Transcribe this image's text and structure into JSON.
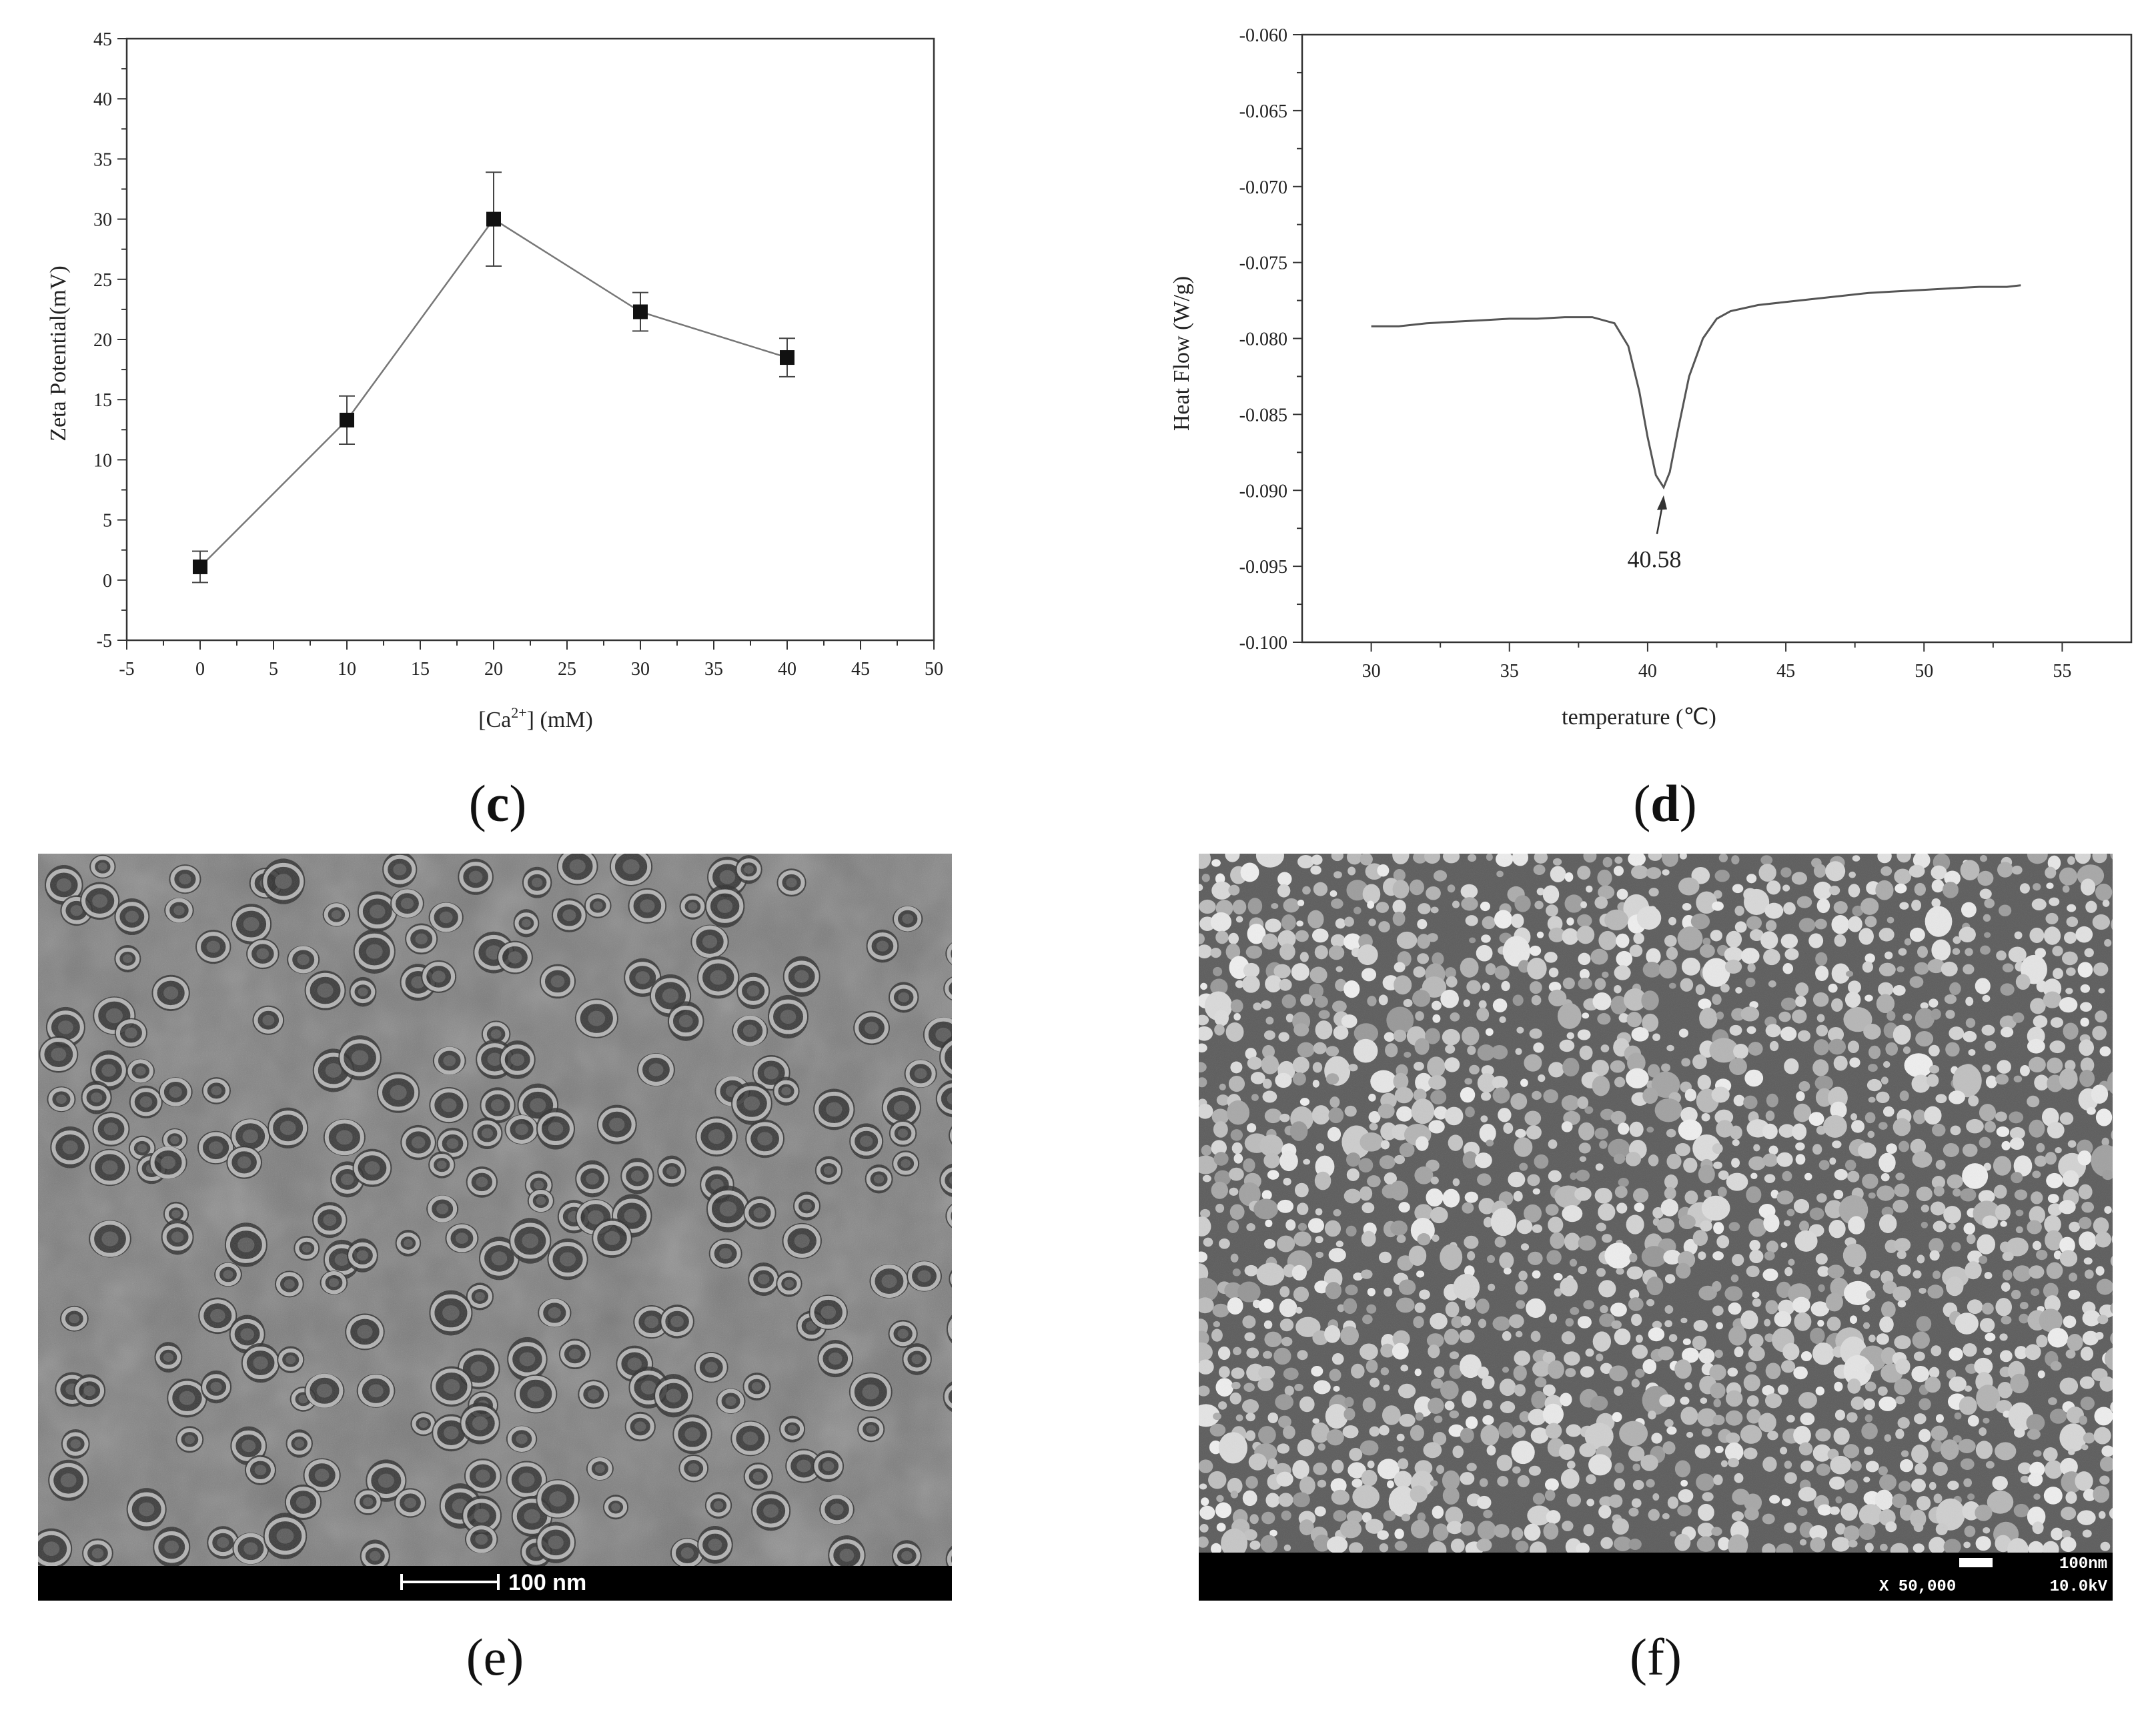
{
  "panels": {
    "c": {
      "open": "(",
      "letter": "c",
      "close": ")"
    },
    "d": {
      "open": "(",
      "letter": "d",
      "close": ")"
    },
    "e": {
      "label": "(e)"
    },
    "f": {
      "label": "(f)"
    }
  },
  "chart_data": [
    {
      "id": "c",
      "type": "line",
      "xlabel": "[Ca2+] (mM)",
      "xlabel_parts": {
        "pre": "[Ca",
        "sup": "2+",
        "post": "] (mM)"
      },
      "ylabel": "Zeta Potential(mV)",
      "xlim": [
        -5,
        50
      ],
      "ylim": [
        -5,
        45
      ],
      "xticks": [
        "-5",
        "0",
        "5",
        "10",
        "15",
        "20",
        "25",
        "30",
        "35",
        "40",
        "45",
        "50"
      ],
      "yticks": [
        "-5",
        "0",
        "5",
        "10",
        "15",
        "20",
        "25",
        "30",
        "35",
        "40",
        "45"
      ],
      "grid": false,
      "marker": "square",
      "series": [
        {
          "x": [
            0,
            10,
            20,
            30,
            40
          ],
          "y": [
            1.1,
            13.3,
            30.0,
            22.3,
            18.5
          ],
          "error": [
            1.3,
            2.0,
            3.9,
            1.6,
            1.6
          ]
        }
      ]
    },
    {
      "id": "d",
      "type": "line",
      "xlabel": "temperature (℃)",
      "ylabel": "Heat Flow (W/g)",
      "xlim": [
        27.5,
        57.5
      ],
      "ylim": [
        -0.1,
        -0.06
      ],
      "xticks": [
        "30",
        "35",
        "40",
        "45",
        "50",
        "55"
      ],
      "yticks": [
        "-0.060",
        "-0.065",
        "-0.070",
        "-0.075",
        "-0.080",
        "-0.085",
        "-0.090",
        "-0.095",
        "-0.100"
      ],
      "grid": false,
      "annotation": {
        "text": "40.58",
        "x": 40.58,
        "y": -0.0898
      },
      "series": [
        {
          "x": [
            30,
            31,
            32,
            33,
            34,
            35,
            36,
            37,
            38,
            38.8,
            39.3,
            39.7,
            40.0,
            40.3,
            40.58,
            40.8,
            41.1,
            41.5,
            42.0,
            42.5,
            43,
            44,
            45,
            46,
            47,
            48,
            49,
            50,
            51,
            52,
            53,
            53.5
          ],
          "y": [
            -0.0792,
            -0.0792,
            -0.079,
            -0.0789,
            -0.0788,
            -0.0787,
            -0.0787,
            -0.0786,
            -0.0786,
            -0.079,
            -0.0805,
            -0.0835,
            -0.0865,
            -0.089,
            -0.0898,
            -0.0888,
            -0.086,
            -0.0825,
            -0.08,
            -0.0787,
            -0.0782,
            -0.0778,
            -0.0776,
            -0.0774,
            -0.0772,
            -0.077,
            -0.0769,
            -0.0768,
            -0.0767,
            -0.0766,
            -0.0766,
            -0.0765
          ]
        }
      ]
    }
  ],
  "microscopy": {
    "e": {
      "scale_text": "100 nm"
    },
    "f": {
      "scale_text": "100nm",
      "magnification": "X 50,000",
      "voltage": "10.0kV"
    }
  }
}
